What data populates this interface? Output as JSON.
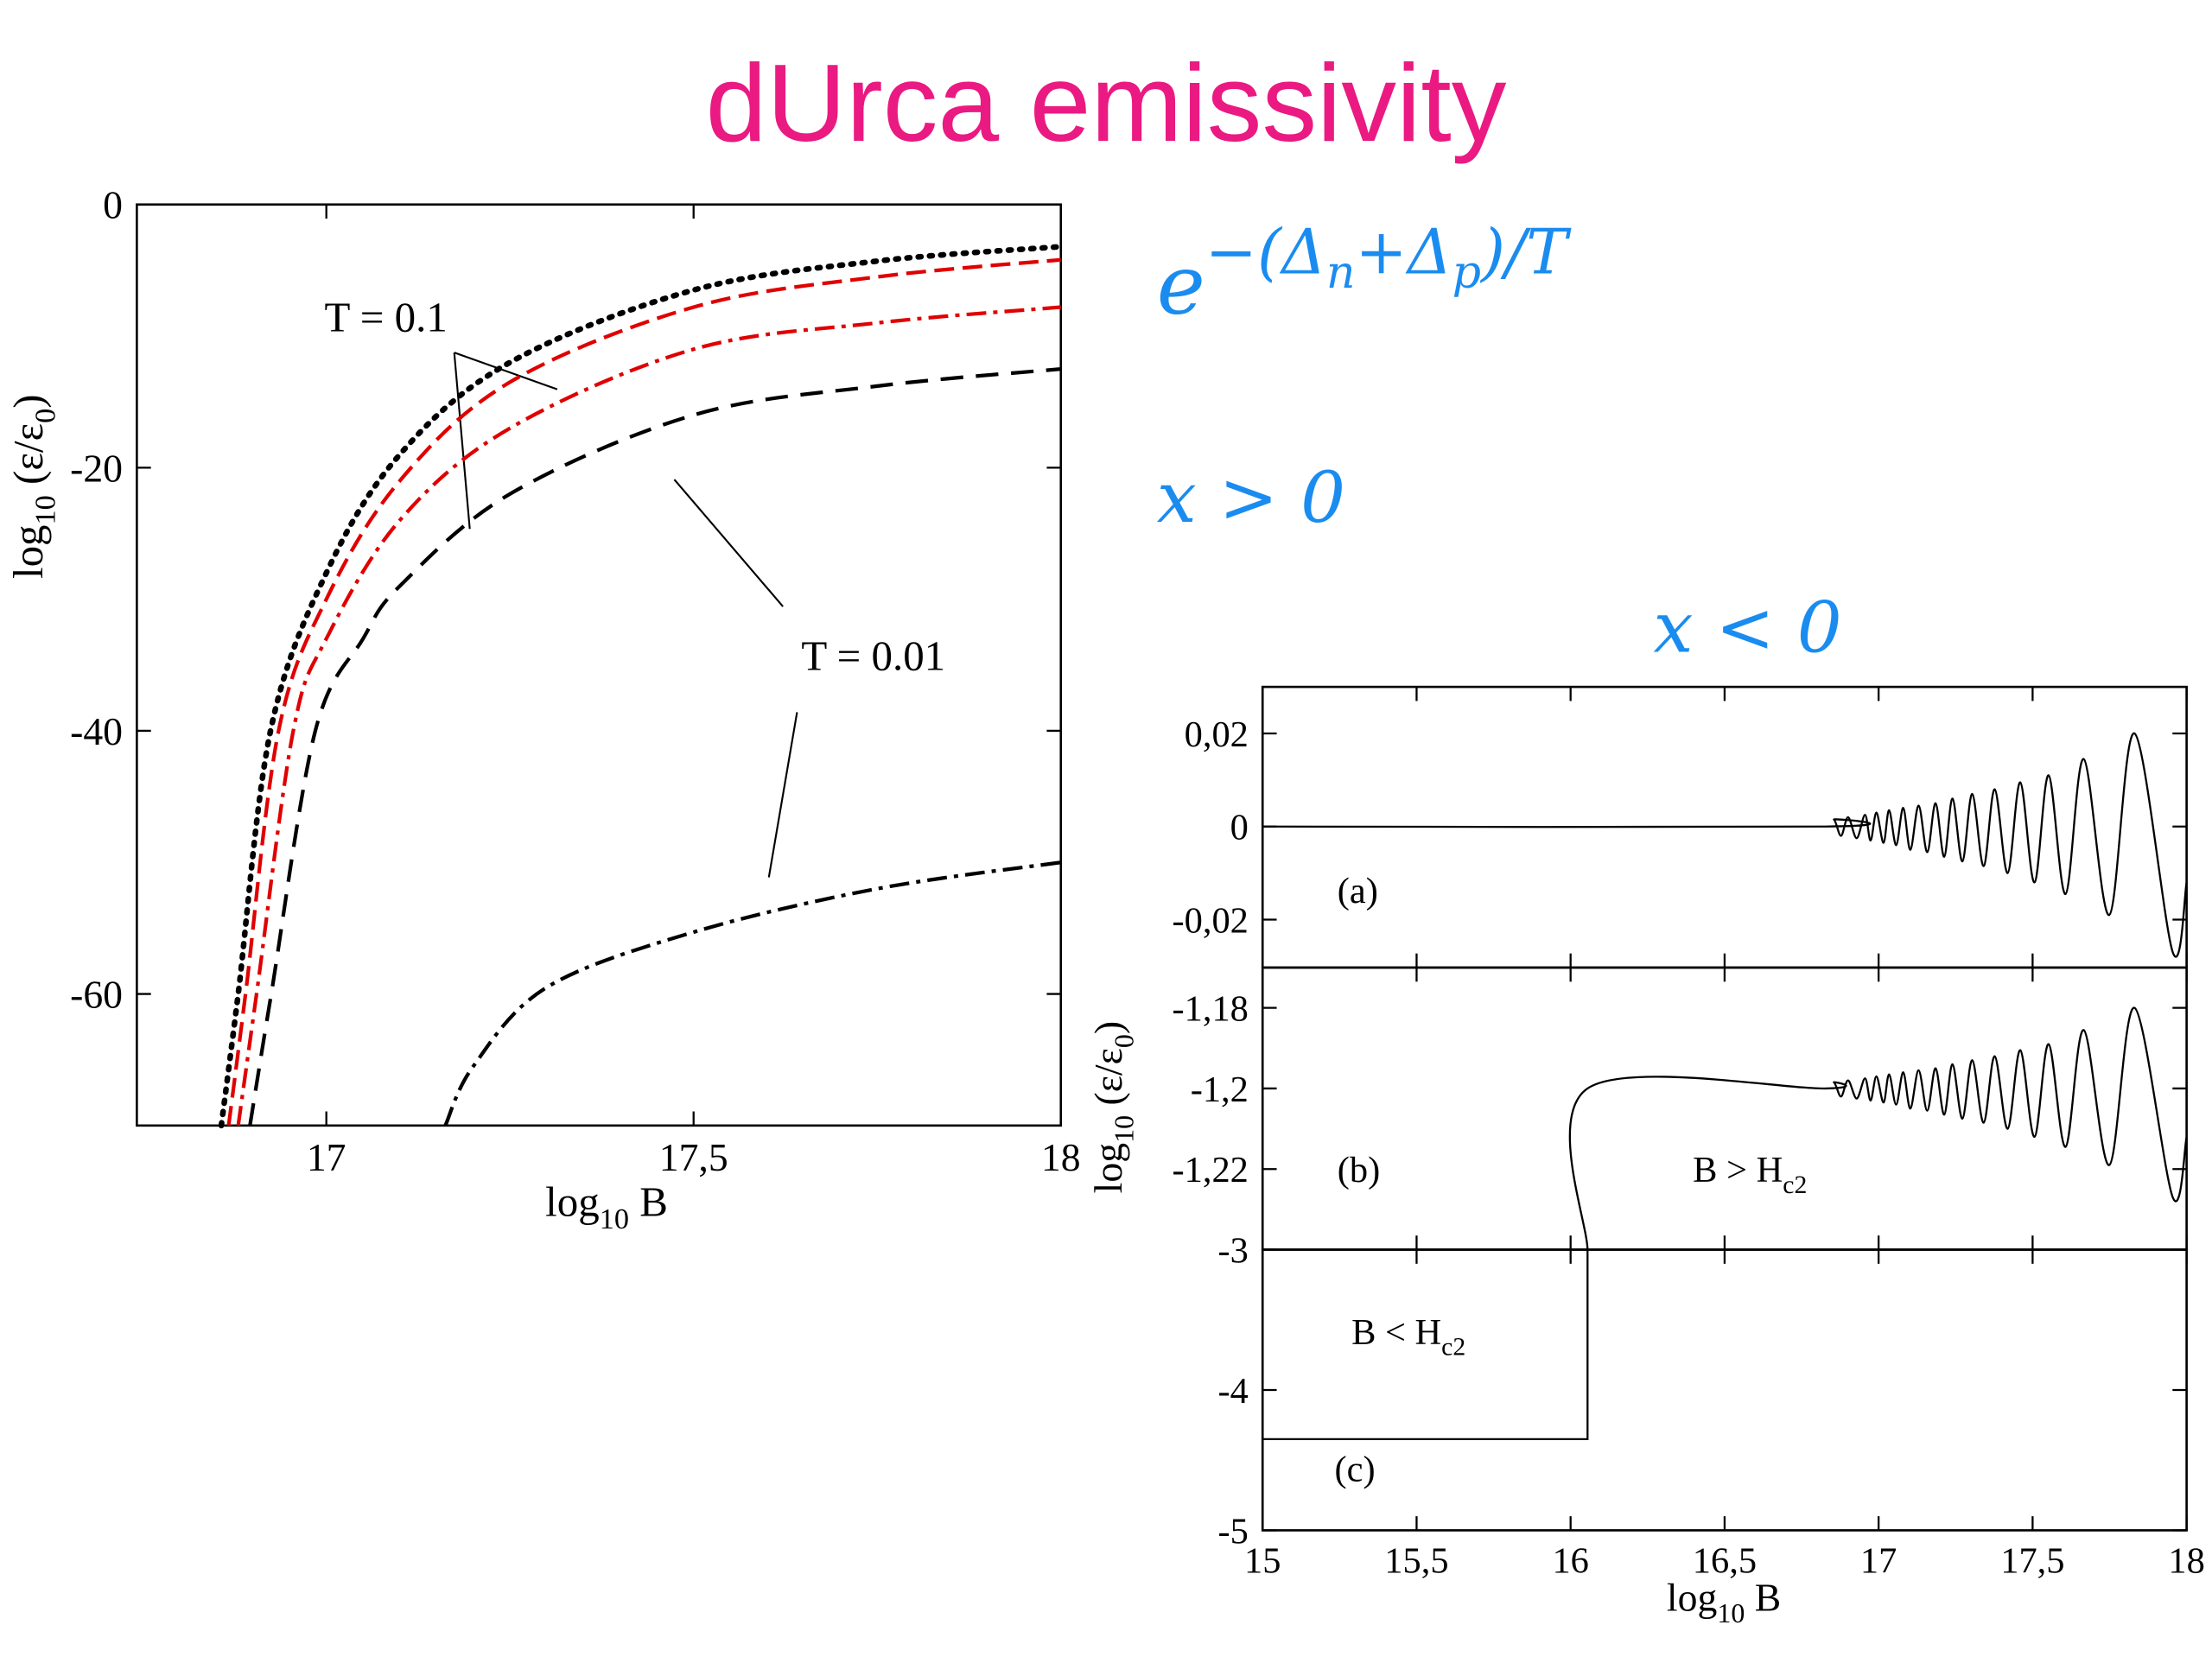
{
  "title": "dUrca emissivity",
  "formulas": {
    "exp": {
      "base": "e",
      "exponent": [
        {
          "text": "−(Δ"
        },
        {
          "text": "n",
          "sub": true
        },
        {
          "text": "+Δ"
        },
        {
          "text": "p",
          "sub": true
        },
        {
          "text": ")/T"
        }
      ]
    },
    "x_pos": "x > 0",
    "x_neg": "x < 0"
  },
  "chart_data": [
    {
      "type": "line",
      "xlabel": [
        {
          "text": "log"
        },
        {
          "text": "10",
          "sub": true
        },
        {
          "text": " B"
        }
      ],
      "ylabel": [
        {
          "text": "log"
        },
        {
          "text": "10",
          "sub": true
        },
        {
          "text": " (ε/ε"
        },
        {
          "text": "0",
          "sub": true
        },
        {
          "text": ")"
        }
      ],
      "xlim": [
        16.742,
        18
      ],
      "ylim": [
        -70,
        0
      ],
      "xticks": [
        17,
        {
          "value": 17.5,
          "label": "17,5"
        },
        18
      ],
      "yticks": [
        0,
        -20,
        -40,
        -60
      ],
      "annotations": [
        [
          {
            "text": "T = 0.1"
          }
        ],
        [
          {
            "text": "T = 0.01"
          }
        ]
      ],
      "series": [
        {
          "color": "#000000",
          "dash": "dotted",
          "smooth": true,
          "x": [
            16.857,
            16.88,
            16.924,
            17,
            17.1,
            17.25,
            17.5,
            17.75,
            18
          ],
          "values": [
            -70,
            -60,
            -40,
            -28,
            -19,
            -12,
            -6.5,
            -4.3,
            -3.2
          ]
        },
        {
          "color": "#e00000",
          "dash": "dashed",
          "smooth": true,
          "x": [
            16.867,
            16.89,
            16.935,
            17,
            17.1,
            17.25,
            17.5,
            17.75,
            18
          ],
          "values": [
            -70,
            -60,
            -40,
            -30,
            -21,
            -13.5,
            -7.8,
            -5.5,
            -4.2
          ]
        },
        {
          "color": "#e00000",
          "dash": "dashdot",
          "smooth": true,
          "x": [
            16.88,
            16.905,
            16.955,
            17,
            17.1,
            17.25,
            17.5,
            17.75,
            18
          ],
          "values": [
            -70,
            -60,
            -40,
            -33,
            -24,
            -17,
            -11,
            -9,
            -7.8
          ]
        },
        {
          "color": "#000000",
          "dash": "longdash",
          "smooth": true,
          "x": [
            16.896,
            16.925,
            16.985,
            17.05,
            17.1,
            17.25,
            17.5,
            17.75,
            18
          ],
          "values": [
            -70,
            -60,
            -40,
            -33,
            -29,
            -22,
            -16,
            -13.8,
            -12.5
          ]
        },
        {
          "color": "#000000",
          "dash": "dashdot",
          "smooth": true,
          "x": [
            17.162,
            17.2,
            17.3,
            17.5,
            17.75,
            18
          ],
          "values": [
            -70,
            -65.5,
            -59.5,
            -55.3,
            -52,
            -50
          ]
        }
      ]
    },
    {
      "type": "line",
      "xlim": [
        15,
        18
      ],
      "ylim": [
        -0.0303,
        0.03
      ],
      "yticks": [
        {
          "value": 0.02,
          "label": "0,02"
        },
        0,
        {
          "value": -0.02,
          "label": "-0,02"
        }
      ],
      "annotations": [
        [
          {
            "text": "(a)"
          }
        ]
      ],
      "series": [
        {
          "color": "#000000",
          "smooth": true,
          "x": [
            15,
            16.83,
            16.855,
            16.878,
            16.901,
            16.929,
            16.956,
            16.974,
            16.993,
            17.016,
            17.034,
            17.057,
            17.08,
            17.103,
            17.13,
            17.158,
            17.185,
            17.213,
            17.24,
            17.272,
            17.304,
            17.341,
            17.377,
            17.419,
            17.46,
            17.506,
            17.552,
            17.607,
            17.666,
            17.749,
            17.831,
            17.955,
            18
          ],
          "values": [
            0,
            0,
            0.0015,
            -0.002,
            0.002,
            -0.0025,
            0.0025,
            -0.003,
            0.003,
            -0.0035,
            0.0035,
            -0.004,
            0.004,
            -0.005,
            0.0045,
            -0.0055,
            0.005,
            -0.0065,
            0.006,
            -0.0075,
            0.007,
            -0.0085,
            0.008,
            -0.01,
            0.0095,
            -0.012,
            0.011,
            -0.0145,
            0.0145,
            -0.019,
            0.02,
            -0.027,
            -0.012
          ]
        }
      ]
    },
    {
      "type": "line",
      "ylabel": [
        {
          "text": "log"
        },
        {
          "text": "10",
          "sub": true
        },
        {
          "text": " (ε/ε"
        },
        {
          "text": "0",
          "sub": true
        },
        {
          "text": ")"
        }
      ],
      "xlim": [
        15,
        18
      ],
      "ylim": [
        -1.24,
        -1.17
      ],
      "yticks": [
        {
          "value": -1.18,
          "label": "-1,18"
        },
        {
          "value": -1.2,
          "label": "-1,2"
        },
        {
          "value": -1.22,
          "label": "-1,22"
        }
      ],
      "annotations": [
        [
          {
            "text": "(b)"
          }
        ],
        [
          {
            "text": "B > H"
          },
          {
            "text": "c2",
            "sub": true
          }
        ]
      ],
      "series": [
        {
          "color": "#000000",
          "smooth": true,
          "x": [
            16.055,
            16.055,
            16.83,
            16.855,
            16.878,
            16.901,
            16.929,
            16.956,
            16.974,
            16.993,
            17.016,
            17.034,
            17.057,
            17.08,
            17.103,
            17.13,
            17.158,
            17.185,
            17.213,
            17.24,
            17.272,
            17.304,
            17.341,
            17.377,
            17.419,
            17.46,
            17.506,
            17.552,
            17.607,
            17.666,
            17.749,
            17.831,
            17.955,
            18
          ],
          "values": [
            -1.24,
            -1.2,
            -1.2,
            -1.1985,
            -1.202,
            -1.198,
            -1.2025,
            -1.1975,
            -1.203,
            -1.197,
            -1.2035,
            -1.1965,
            -1.204,
            -1.196,
            -1.205,
            -1.1955,
            -1.2055,
            -1.195,
            -1.2065,
            -1.194,
            -1.2075,
            -1.193,
            -1.2085,
            -1.192,
            -1.21,
            -1.1905,
            -1.212,
            -1.189,
            -1.2145,
            -1.1855,
            -1.219,
            -1.18,
            -1.227,
            -1.212
          ]
        }
      ]
    },
    {
      "type": "line",
      "xlabel": [
        {
          "text": "log"
        },
        {
          "text": "10",
          "sub": true
        },
        {
          "text": " B"
        }
      ],
      "xlim": [
        15,
        18
      ],
      "ylim": [
        -5,
        -3
      ],
      "xticks": [
        15,
        {
          "value": 15.5,
          "label": "15,5"
        },
        16,
        {
          "value": 16.5,
          "label": "16,5"
        },
        17,
        {
          "value": 17.5,
          "label": "17,5"
        },
        18
      ],
      "yticks": [
        -3,
        -4,
        -5
      ],
      "annotations": [
        [
          {
            "text": "(c)"
          }
        ],
        [
          {
            "text": "B < H"
          },
          {
            "text": "c2",
            "sub": true
          }
        ]
      ],
      "series": [
        {
          "color": "#000000",
          "smooth": false,
          "x": [
            15,
            16.055,
            16.055
          ],
          "values": [
            -4.35,
            -4.35,
            -3
          ]
        }
      ]
    }
  ]
}
